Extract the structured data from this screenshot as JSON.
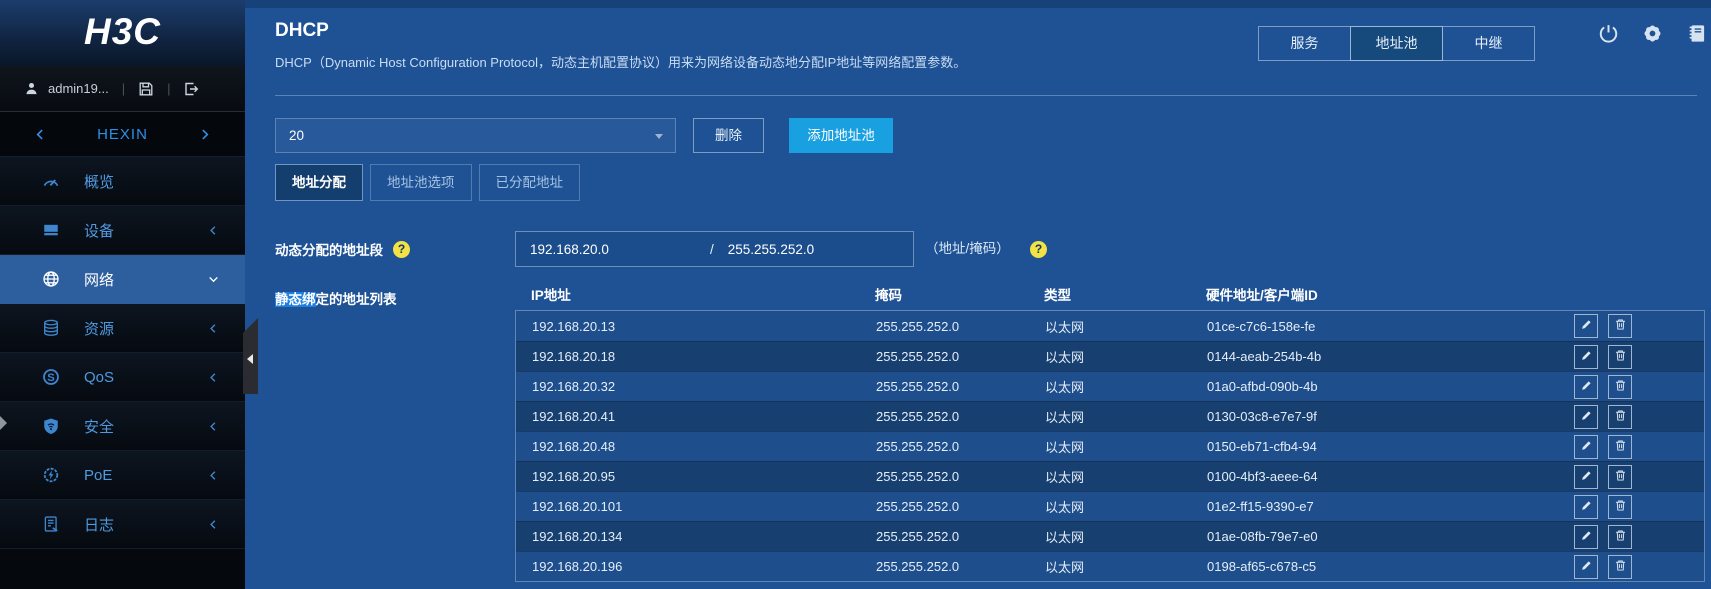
{
  "brand": {
    "logo": "H3C"
  },
  "user": {
    "name": "admin19...",
    "icons": [
      "person-icon",
      "save-icon",
      "logout-icon"
    ]
  },
  "sidebar": {
    "project": "HEXIN",
    "items": [
      {
        "id": "overview",
        "label": "概览",
        "icon": "gauge-icon",
        "chevron": null,
        "selected": false
      },
      {
        "id": "device",
        "label": "设备",
        "icon": "device-icon",
        "chevron": "left",
        "selected": false
      },
      {
        "id": "network",
        "label": "网络",
        "icon": "globe-icon",
        "chevron": "down",
        "selected": true
      },
      {
        "id": "resource",
        "label": "资源",
        "icon": "database-icon",
        "chevron": "left",
        "selected": false
      },
      {
        "id": "qos",
        "label": "QoS",
        "icon": "qos-badge-icon",
        "chevron": "left",
        "selected": false
      },
      {
        "id": "security",
        "label": "安全",
        "icon": "shield-icon",
        "chevron": "left",
        "selected": false
      },
      {
        "id": "poe",
        "label": "PoE",
        "icon": "poe-icon",
        "chevron": "left",
        "selected": false
      },
      {
        "id": "log",
        "label": "日志",
        "icon": "log-icon",
        "chevron": "left",
        "selected": false
      }
    ]
  },
  "header": {
    "title": "DHCP",
    "description": "DHCP（Dynamic Host Configuration Protocol，动态主机配置协议）用来为网络设备动态地分配IP地址等网络配置参数。",
    "nav_tabs": [
      {
        "id": "service",
        "label": "服务",
        "selected": false
      },
      {
        "id": "address-pool",
        "label": "地址池",
        "selected": true
      },
      {
        "id": "relay",
        "label": "中继",
        "selected": false
      }
    ],
    "icon_buttons": [
      {
        "id": "power",
        "icon": "power-icon"
      },
      {
        "id": "settings",
        "icon": "gear-icon"
      },
      {
        "id": "manual",
        "icon": "journal-icon"
      }
    ]
  },
  "toolbar": {
    "pool_select_value": "20",
    "delete_label": "删除",
    "add_label": "添加地址池"
  },
  "tabs": [
    {
      "id": "address-allocation",
      "label": "地址分配",
      "selected": true
    },
    {
      "id": "pool-options",
      "label": "地址池选项",
      "selected": false
    },
    {
      "id": "assigned-addresses",
      "label": "已分配地址",
      "selected": false
    }
  ],
  "form": {
    "dynamic_label": "动态分配的地址段",
    "address": "192.168.20.0",
    "separator": "/",
    "mask": "255.255.252.0",
    "hint": "（地址/掩码）",
    "help_icon": "help-icon"
  },
  "static_list": {
    "label_highlight": "静态绑",
    "label_rest": "定的地址列表",
    "columns": [
      "IP地址",
      "掩码",
      "类型",
      "硬件地址/客户端ID"
    ],
    "row_actions": [
      "edit-pencil-icon",
      "trash-icon"
    ],
    "rows": [
      {
        "ip": "192.168.20.13",
        "mask": "255.255.252.0",
        "type": "以太网",
        "hw": "01ce-c7c6-158e-fe"
      },
      {
        "ip": "192.168.20.18",
        "mask": "255.255.252.0",
        "type": "以太网",
        "hw": "0144-aeab-254b-4b"
      },
      {
        "ip": "192.168.20.32",
        "mask": "255.255.252.0",
        "type": "以太网",
        "hw": "01a0-afbd-090b-4b"
      },
      {
        "ip": "192.168.20.41",
        "mask": "255.255.252.0",
        "type": "以太网",
        "hw": "0130-03c8-e7e7-9f"
      },
      {
        "ip": "192.168.20.48",
        "mask": "255.255.252.0",
        "type": "以太网",
        "hw": "0150-eb71-cfb4-94"
      },
      {
        "ip": "192.168.20.95",
        "mask": "255.255.252.0",
        "type": "以太网",
        "hw": "0100-4bf3-aeee-64"
      },
      {
        "ip": "192.168.20.101",
        "mask": "255.255.252.0",
        "type": "以太网",
        "hw": "01e2-ff15-9390-e7"
      },
      {
        "ip": "192.168.20.134",
        "mask": "255.255.252.0",
        "type": "以太网",
        "hw": "01ae-08fb-79e7-e0"
      },
      {
        "ip": "192.168.20.196",
        "mask": "255.255.252.0",
        "type": "以太网",
        "hw": "0198-af65-c678-c5"
      }
    ]
  },
  "colors": {
    "page-bg": "#1E5295",
    "accent": "#18A0E0",
    "selection": "#1F7FE0",
    "help-yellow": "#F2E243",
    "row-light": "#1F4E8C",
    "row-dark": "#173F70",
    "sidebar-selected": "#2D5F9E",
    "menu-text": "#4F9AE0",
    "border-light": "#8FA9C9"
  }
}
